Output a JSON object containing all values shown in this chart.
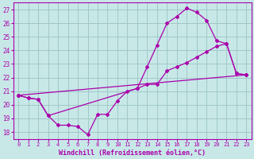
{
  "xlabel": "Windchill (Refroidissement éolien,°C)",
  "xlim": [
    -0.5,
    23.5
  ],
  "ylim": [
    17.5,
    27.5
  ],
  "xticks": [
    0,
    1,
    2,
    3,
    4,
    5,
    6,
    7,
    8,
    9,
    10,
    11,
    12,
    13,
    14,
    15,
    16,
    17,
    18,
    19,
    20,
    21,
    22,
    23
  ],
  "yticks": [
    18,
    19,
    20,
    21,
    22,
    23,
    24,
    25,
    26,
    27
  ],
  "bg_color": "#c8e8e8",
  "line_color": "#aa00aa",
  "grid_color": "#a0c8c8",
  "line1_x": [
    0,
    1,
    2,
    3,
    4,
    5,
    6,
    7,
    8,
    9,
    10,
    11,
    12,
    13,
    14,
    15,
    16,
    17,
    18,
    19,
    20,
    21,
    22,
    23
  ],
  "line1_y": [
    20.7,
    20.5,
    20.4,
    19.2,
    18.5,
    18.5,
    18.4,
    17.8,
    19.3,
    19.3,
    20.3,
    21.0,
    21.2,
    22.8,
    24.4,
    26.0,
    26.5,
    27.1,
    26.8,
    26.2,
    24.7,
    24.5,
    22.3,
    22.2
  ],
  "line2_x": [
    0,
    1,
    2,
    3,
    12,
    13,
    14,
    15,
    16,
    17,
    18,
    19,
    20,
    21,
    22,
    23
  ],
  "line2_y": [
    20.7,
    20.5,
    20.4,
    19.2,
    21.2,
    21.5,
    21.5,
    22.5,
    22.8,
    23.1,
    23.5,
    23.9,
    24.3,
    24.5,
    22.3,
    22.2
  ],
  "line3_x": [
    0,
    23
  ],
  "line3_y": [
    20.7,
    22.2
  ]
}
